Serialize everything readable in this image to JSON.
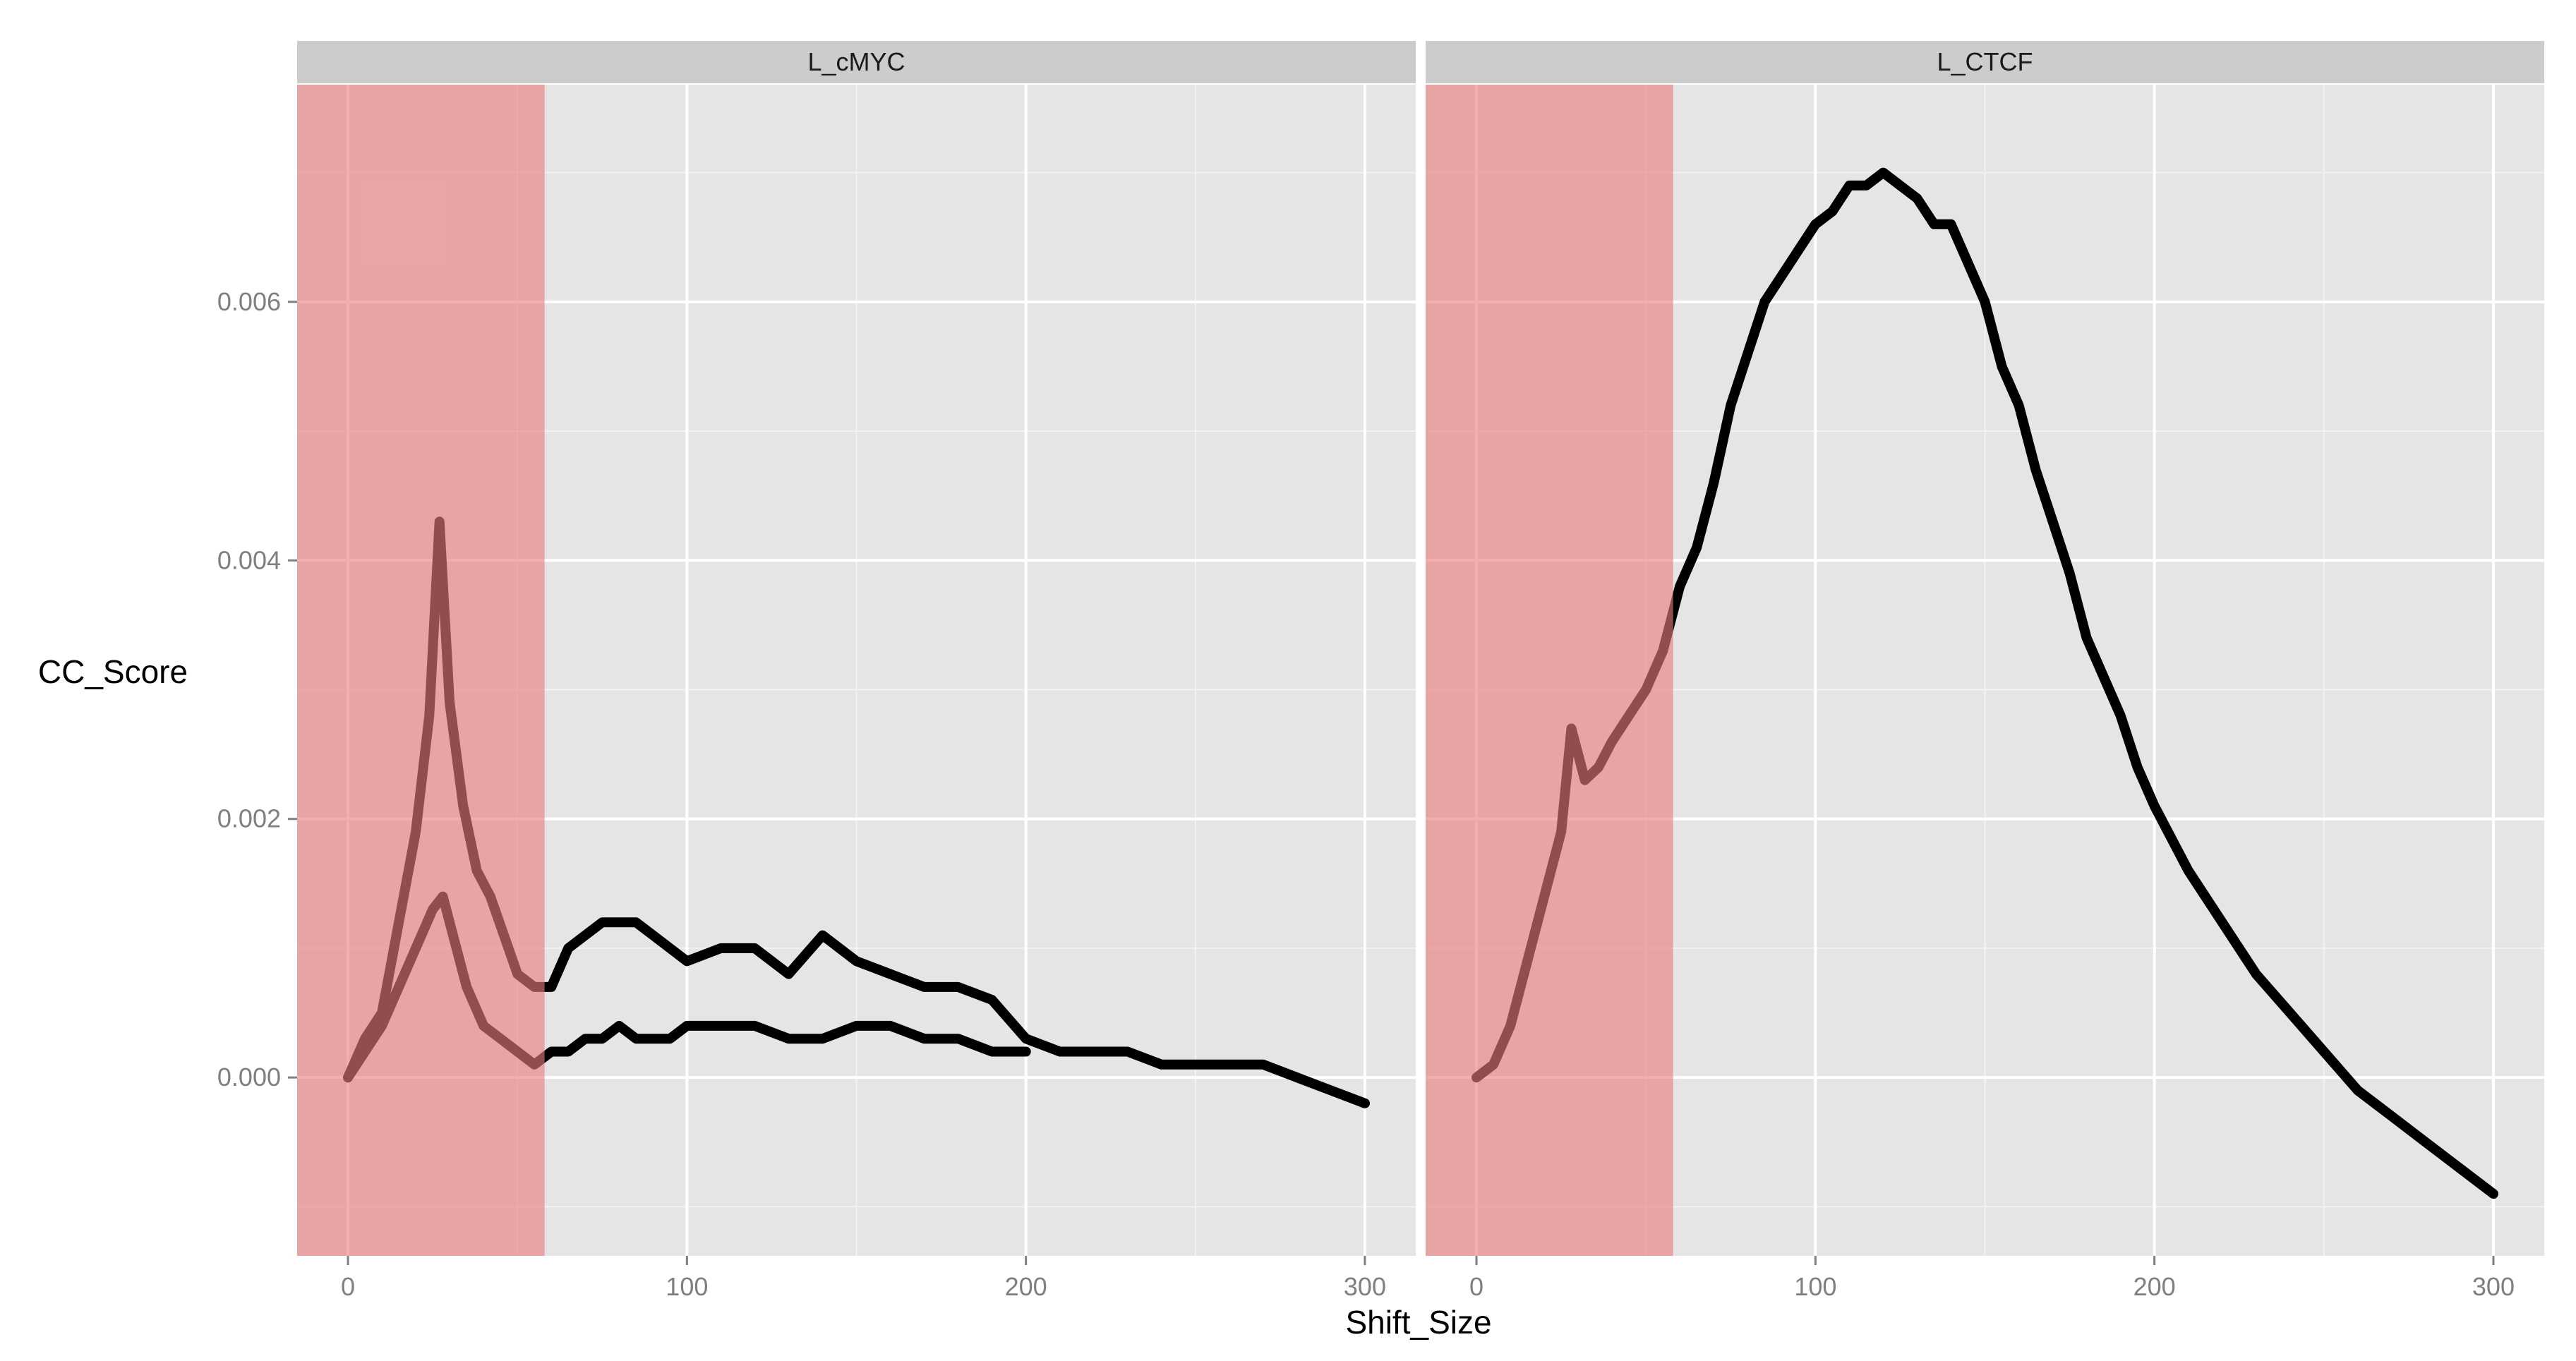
{
  "chart_data": {
    "type": "line",
    "xlabel": "Shift_Size",
    "ylabel": "CC_Score",
    "xlim": [
      -15,
      315
    ],
    "ylim": [
      -0.00138,
      0.00768
    ],
    "x_ticks": [
      0,
      100,
      200,
      300
    ],
    "x_tick_labels": [
      "0",
      "100",
      "200",
      "300"
    ],
    "y_ticks": [
      0,
      0.002,
      0.004,
      0.006
    ],
    "y_tick_labels": [
      "0.000",
      "0.002",
      "0.004",
      "0.006"
    ],
    "grid": true,
    "legend": "none",
    "highlight": {
      "x_range": [
        -15,
        58
      ],
      "color": "#e87d7d",
      "label": ""
    },
    "line_color": "#000000",
    "panels": [
      {
        "strip_label": "L_cMYC",
        "series": [
          {
            "x": [
              0,
              5,
              10,
              15,
              20,
              24,
              27,
              30,
              34,
              38,
              42,
              46,
              50,
              55,
              60,
              65,
              70,
              75,
              80,
              85,
              90,
              95,
              100,
              110,
              120,
              130,
              140,
              150,
              160,
              170,
              180,
              190,
              200,
              210,
              220,
              230,
              240,
              250,
              260,
              270,
              280,
              290,
              300
            ],
            "y": [
              0.0,
              0.0003,
              0.0005,
              0.0012,
              0.0019,
              0.0028,
              0.0043,
              0.0029,
              0.0021,
              0.0016,
              0.0014,
              0.0011,
              0.0008,
              0.0007,
              0.0007,
              0.001,
              0.0011,
              0.0012,
              0.0012,
              0.0012,
              0.0011,
              0.001,
              0.0009,
              0.001,
              0.001,
              0.0008,
              0.0011,
              0.0009,
              0.0008,
              0.0007,
              0.0007,
              0.0006,
              0.0003,
              0.0002,
              0.0002,
              0.0002,
              0.0001,
              0.0001,
              0.0001,
              0.0001,
              0.0,
              -0.0001,
              -0.0002
            ]
          },
          {
            "x": [
              0,
              5,
              10,
              15,
              20,
              25,
              28,
              31,
              35,
              40,
              45,
              50,
              55,
              60,
              65,
              70,
              75,
              80,
              85,
              90,
              95,
              100,
              110,
              120,
              130,
              140,
              150,
              160,
              170,
              180,
              190,
              200
            ],
            "y": [
              0.0,
              0.0002,
              0.0004,
              0.0007,
              0.001,
              0.0013,
              0.0014,
              0.0011,
              0.0007,
              0.0004,
              0.0003,
              0.0002,
              0.0001,
              0.0002,
              0.0002,
              0.0003,
              0.0003,
              0.0004,
              0.0003,
              0.0003,
              0.0003,
              0.0004,
              0.0004,
              0.0004,
              0.0003,
              0.0003,
              0.0004,
              0.0004,
              0.0003,
              0.0003,
              0.0002,
              0.0002
            ]
          }
        ]
      },
      {
        "strip_label": "L_CTCF",
        "series": [
          {
            "x": [
              0,
              5,
              10,
              15,
              20,
              25,
              28,
              32,
              36,
              40,
              45,
              50,
              55,
              60,
              65,
              70,
              75,
              80,
              85,
              90,
              95,
              100,
              105,
              110,
              115,
              120,
              125,
              130,
              135,
              140,
              145,
              150,
              155,
              160,
              165,
              170,
              175,
              180,
              185,
              190,
              195,
              200,
              210,
              220,
              230,
              240,
              250,
              260,
              270,
              280,
              290,
              300
            ],
            "y": [
              0.0,
              0.0001,
              0.0004,
              0.0009,
              0.0014,
              0.0019,
              0.0027,
              0.0023,
              0.0024,
              0.0026,
              0.0028,
              0.003,
              0.0033,
              0.0038,
              0.0041,
              0.0046,
              0.0052,
              0.0056,
              0.006,
              0.0062,
              0.0064,
              0.0066,
              0.0067,
              0.0069,
              0.0069,
              0.007,
              0.0069,
              0.0068,
              0.0066,
              0.0066,
              0.0063,
              0.006,
              0.0055,
              0.0052,
              0.0047,
              0.0043,
              0.0039,
              0.0034,
              0.0031,
              0.0028,
              0.0024,
              0.0021,
              0.0016,
              0.0012,
              0.0008,
              0.0005,
              0.0002,
              -0.0001,
              -0.0003,
              -0.0005,
              -0.0007,
              -0.0009
            ]
          }
        ]
      }
    ]
  }
}
